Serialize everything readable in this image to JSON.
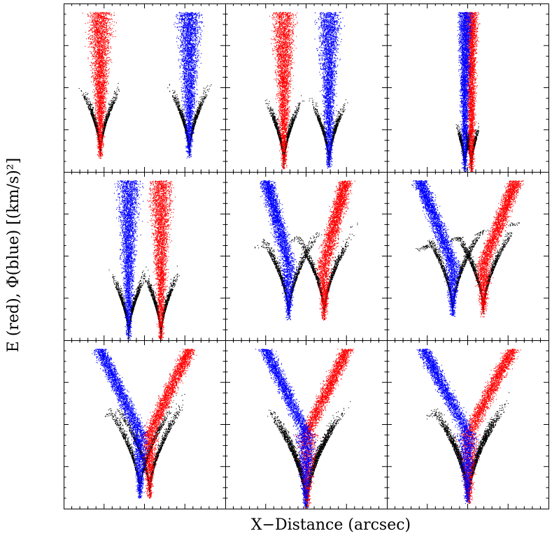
{
  "figure": {
    "xlabel": "X−Distance (arcsec)",
    "ylabel": "E (red), Φ(blue) [(km/s)²]"
  },
  "colors": {
    "E": "#ff0000",
    "Phi": "#0000ff",
    "background_particles": "#000000"
  },
  "chart_data": {
    "type": "scatter",
    "grid": false,
    "layout": "3x3 panel grid, shared axes, no tick labels",
    "panels": [
      {
        "panel": 1,
        "series": [
          {
            "color": "red",
            "description": "left well",
            "center": -0.55,
            "spread": "wide"
          },
          {
            "color": "blue",
            "description": "right well",
            "center": 0.55,
            "spread": "wide"
          },
          {
            "color": "black",
            "description": "potential envelopes of two separated wells"
          }
        ],
        "sep": 1.1
      },
      {
        "panel": 2,
        "sep": 0.55
      },
      {
        "panel": 3,
        "sep": 0.08
      },
      {
        "panel": 4,
        "sep": 0.4
      },
      {
        "panel": 5,
        "sep": 0.45
      },
      {
        "panel": 6,
        "sep": 0.38
      },
      {
        "panel": 7,
        "sep": 0.12
      },
      {
        "panel": 8,
        "sep": 0.02
      },
      {
        "panel": 9,
        "sep": 0.02
      }
    ]
  }
}
